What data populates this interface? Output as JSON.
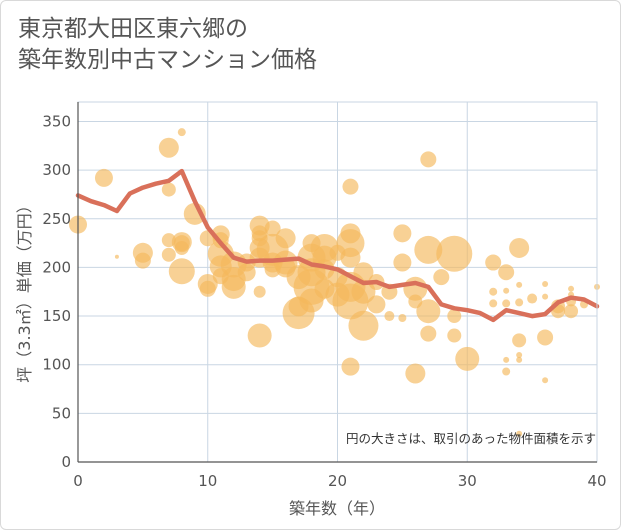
{
  "chart_data": {
    "type": "scatter",
    "title_lines": [
      "東京都大田区東六郷の",
      "築年数別中古マンション価格"
    ],
    "xlabel": "築年数（年）",
    "ylabel": "坪（3.3㎡）単価（万円）",
    "xlim": [
      0,
      40
    ],
    "ylim": [
      0,
      370
    ],
    "xticks": [
      0,
      10,
      20,
      30,
      40
    ],
    "yticks": [
      0,
      50,
      100,
      150,
      200,
      250,
      300,
      350
    ],
    "grid": true,
    "note": "円の大きさは、取引のあった物件面積を示す",
    "colors": {
      "bubble": "#f5b85c",
      "line": "#d9705a",
      "grid": "#c9d6e3",
      "axis": "#555555"
    },
    "series": [
      {
        "kind": "bubbles",
        "points": [
          [
            0,
            244,
            9
          ],
          [
            2,
            292,
            9
          ],
          [
            3,
            211,
            2
          ],
          [
            5,
            215,
            10
          ],
          [
            5,
            207,
            8
          ],
          [
            7,
            323,
            10
          ],
          [
            7,
            280,
            7
          ],
          [
            7,
            228,
            7
          ],
          [
            7,
            213,
            7
          ],
          [
            8,
            196,
            13
          ],
          [
            8,
            226,
            10
          ],
          [
            8,
            225,
            8
          ],
          [
            8,
            220,
            7
          ],
          [
            8,
            339,
            4
          ],
          [
            9,
            255,
            11
          ],
          [
            10,
            230,
            8
          ],
          [
            10,
            183,
            10
          ],
          [
            10,
            178,
            8
          ],
          [
            11,
            234,
            9
          ],
          [
            11,
            228,
            8
          ],
          [
            11,
            214,
            13
          ],
          [
            11,
            201,
            11
          ],
          [
            11,
            191,
            8
          ],
          [
            12,
            203,
            13
          ],
          [
            12,
            188,
            12
          ],
          [
            12,
            180,
            12
          ],
          [
            13,
            205,
            9
          ],
          [
            13,
            195,
            9
          ],
          [
            14,
            243,
            10
          ],
          [
            14,
            235,
            8
          ],
          [
            14,
            230,
            8
          ],
          [
            14,
            220,
            10
          ],
          [
            14,
            210,
            10
          ],
          [
            14,
            175,
            6
          ],
          [
            14,
            130,
            12
          ],
          [
            15,
            240,
            8
          ],
          [
            15,
            218,
            16
          ],
          [
            15,
            205,
            10
          ],
          [
            15,
            198,
            8
          ],
          [
            16,
            230,
            10
          ],
          [
            16,
            205,
            12
          ],
          [
            16,
            200,
            10
          ],
          [
            17,
            190,
            12
          ],
          [
            17,
            160,
            10
          ],
          [
            17,
            153,
            16
          ],
          [
            18,
            225,
            9
          ],
          [
            18,
            210,
            14
          ],
          [
            18,
            195,
            14
          ],
          [
            18,
            180,
            18
          ],
          [
            18,
            166,
            12
          ],
          [
            19,
            220,
            14
          ],
          [
            19,
            210,
            12
          ],
          [
            19,
            198,
            10
          ],
          [
            19,
            178,
            10
          ],
          [
            20,
            215,
            8
          ],
          [
            20,
            190,
            10
          ],
          [
            20,
            172,
            12
          ],
          [
            21,
            283,
            8
          ],
          [
            21,
            235,
            10
          ],
          [
            21,
            225,
            14
          ],
          [
            21,
            210,
            10
          ],
          [
            21,
            180,
            15
          ],
          [
            21,
            165,
            18
          ],
          [
            21,
            98,
            9
          ],
          [
            22,
            195,
            10
          ],
          [
            22,
            175,
            12
          ],
          [
            22,
            140,
            15
          ],
          [
            23,
            185,
            8
          ],
          [
            23,
            162,
            9
          ],
          [
            24,
            175,
            8
          ],
          [
            24,
            150,
            5
          ],
          [
            25,
            235,
            9
          ],
          [
            25,
            205,
            9
          ],
          [
            25,
            148,
            4
          ],
          [
            26,
            178,
            12
          ],
          [
            26,
            165,
            7
          ],
          [
            26,
            91,
            10
          ],
          [
            27,
            311,
            8
          ],
          [
            27,
            218,
            14
          ],
          [
            27,
            155,
            12
          ],
          [
            27,
            132,
            8
          ],
          [
            28,
            190,
            8
          ],
          [
            29,
            214,
            18
          ],
          [
            29,
            150,
            7
          ],
          [
            29,
            130,
            7
          ],
          [
            30,
            106,
            12
          ],
          [
            32,
            205,
            8
          ],
          [
            32,
            175,
            4
          ],
          [
            32,
            163,
            4
          ],
          [
            33,
            195,
            8
          ],
          [
            33,
            176,
            3
          ],
          [
            33,
            163,
            4
          ],
          [
            33,
            105,
            3
          ],
          [
            33,
            93,
            4
          ],
          [
            34,
            220,
            10
          ],
          [
            34,
            182,
            3
          ],
          [
            34,
            164,
            4
          ],
          [
            34,
            125,
            7
          ],
          [
            34,
            110,
            3
          ],
          [
            34,
            105,
            3
          ],
          [
            34,
            29,
            3
          ],
          [
            35,
            168,
            5
          ],
          [
            36,
            183,
            3
          ],
          [
            36,
            170,
            3
          ],
          [
            36,
            128,
            8
          ],
          [
            36,
            84,
            3
          ],
          [
            37,
            160,
            7
          ],
          [
            37,
            155,
            7
          ],
          [
            38,
            178,
            3
          ],
          [
            38,
            172,
            3
          ],
          [
            38,
            165,
            5
          ],
          [
            38,
            155,
            7
          ],
          [
            39,
            162,
            4
          ],
          [
            40,
            180,
            3
          ]
        ]
      },
      {
        "kind": "line",
        "name": "",
        "points": [
          [
            0,
            274
          ],
          [
            1,
            268
          ],
          [
            2,
            264
          ],
          [
            3,
            258
          ],
          [
            4,
            276
          ],
          [
            5,
            282
          ],
          [
            6,
            286
          ],
          [
            7,
            289
          ],
          [
            8,
            299
          ],
          [
            9,
            268
          ],
          [
            10,
            241
          ],
          [
            11,
            225
          ],
          [
            12,
            210
          ],
          [
            13,
            206
          ],
          [
            14,
            207
          ],
          [
            15,
            207
          ],
          [
            16,
            208
          ],
          [
            17,
            209
          ],
          [
            18,
            203
          ],
          [
            19,
            201
          ],
          [
            20,
            198
          ],
          [
            21,
            191
          ],
          [
            22,
            184
          ],
          [
            23,
            185
          ],
          [
            24,
            180
          ],
          [
            25,
            182
          ],
          [
            26,
            184
          ],
          [
            27,
            180
          ],
          [
            28,
            162
          ],
          [
            29,
            158
          ],
          [
            30,
            156
          ],
          [
            31,
            153
          ],
          [
            32,
            146
          ],
          [
            33,
            156
          ],
          [
            34,
            153
          ],
          [
            35,
            150
          ],
          [
            36,
            152
          ],
          [
            37,
            164
          ],
          [
            38,
            169
          ],
          [
            39,
            167
          ],
          [
            40,
            160
          ]
        ]
      }
    ]
  }
}
